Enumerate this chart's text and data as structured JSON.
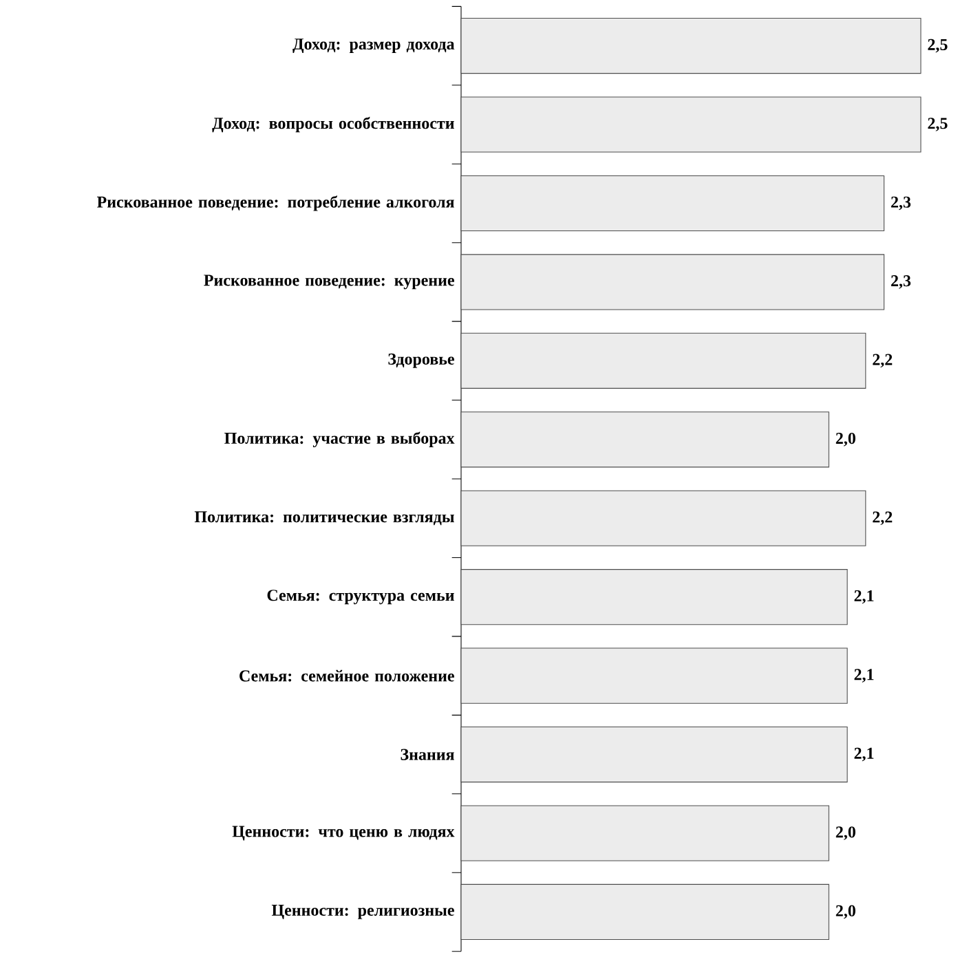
{
  "chart_data": {
    "type": "bar",
    "orientation": "horizontal",
    "categories": [
      "Доход: размер дохода",
      "Доход: вопросы особственности",
      "Рискованное поведение: потребление алкоголя",
      "Рискованное поведение: курение",
      "Здоровье",
      "Политика: участие в выборах",
      "Политика: политические взгляды",
      "Семья: структура семьи",
      "Семья: семейное положение",
      "Знания",
      "Ценности: что ценю в людях",
      "Ценности: религиозные"
    ],
    "values": [
      2.5,
      2.5,
      2.3,
      2.3,
      2.2,
      2.0,
      2.2,
      2.1,
      2.1,
      2.1,
      2.0,
      2.0
    ],
    "value_labels": [
      "2,5",
      "2,5",
      "2,3",
      "2,3",
      "2,2",
      "2,0",
      "2,2",
      "2,1",
      "2,1",
      "2,1",
      "2,0",
      "2,0"
    ],
    "color": "#ececec"
  }
}
